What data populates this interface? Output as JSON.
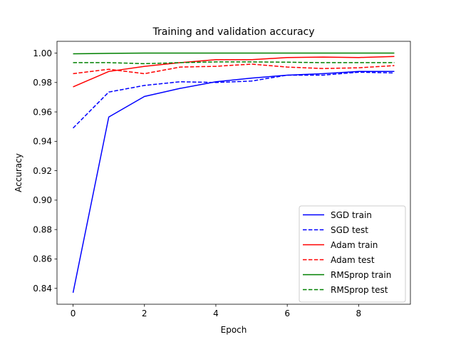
{
  "chart_data": {
    "type": "line",
    "title": "Training and validation accuracy",
    "xlabel": "Epoch",
    "ylabel": "Accuracy",
    "x": [
      0,
      1,
      2,
      3,
      4,
      5,
      6,
      7,
      8,
      9
    ],
    "xlim": [
      -0.45,
      9.45
    ],
    "ylim": [
      0.8292,
      1.008
    ],
    "xticks": [
      0,
      2,
      4,
      6,
      8
    ],
    "yticks": [
      0.84,
      0.86,
      0.88,
      0.9,
      0.92,
      0.94,
      0.96,
      0.98,
      1.0
    ],
    "ytick_labels": [
      "0.84",
      "0.86",
      "0.88",
      "0.90",
      "0.92",
      "0.94",
      "0.96",
      "0.98",
      "1.00"
    ],
    "grid": false,
    "legend_position": "lower-right",
    "series": [
      {
        "name": "SGD train",
        "color": "#0000ff",
        "dash": "solid",
        "values": [
          0.837,
          0.9565,
          0.9705,
          0.976,
          0.9805,
          0.983,
          0.985,
          0.986,
          0.9875,
          0.9875
        ]
      },
      {
        "name": "SGD test",
        "color": "#0000ff",
        "dash": "dashed",
        "values": [
          0.949,
          0.9735,
          0.978,
          0.9805,
          0.98,
          0.981,
          0.985,
          0.985,
          0.987,
          0.9865
        ]
      },
      {
        "name": "Adam train",
        "color": "#ff0000",
        "dash": "solid",
        "values": [
          0.977,
          0.9875,
          0.991,
          0.9935,
          0.9955,
          0.9955,
          0.997,
          0.9973,
          0.997,
          0.9977
        ]
      },
      {
        "name": "Adam test",
        "color": "#ff0000",
        "dash": "dashed",
        "values": [
          0.986,
          0.989,
          0.986,
          0.9905,
          0.991,
          0.9925,
          0.9905,
          0.9895,
          0.99,
          0.9915
        ]
      },
      {
        "name": "RMSprop train",
        "color": "#008000",
        "dash": "solid",
        "values": [
          0.9995,
          0.9998,
          1.0,
          1.0,
          1.0,
          1.0,
          1.0,
          1.0,
          1.0,
          1.0
        ]
      },
      {
        "name": "RMSprop test",
        "color": "#008000",
        "dash": "dashed",
        "values": [
          0.9935,
          0.9935,
          0.9928,
          0.9935,
          0.994,
          0.994,
          0.9938,
          0.9935,
          0.9935,
          0.9935
        ]
      }
    ]
  }
}
